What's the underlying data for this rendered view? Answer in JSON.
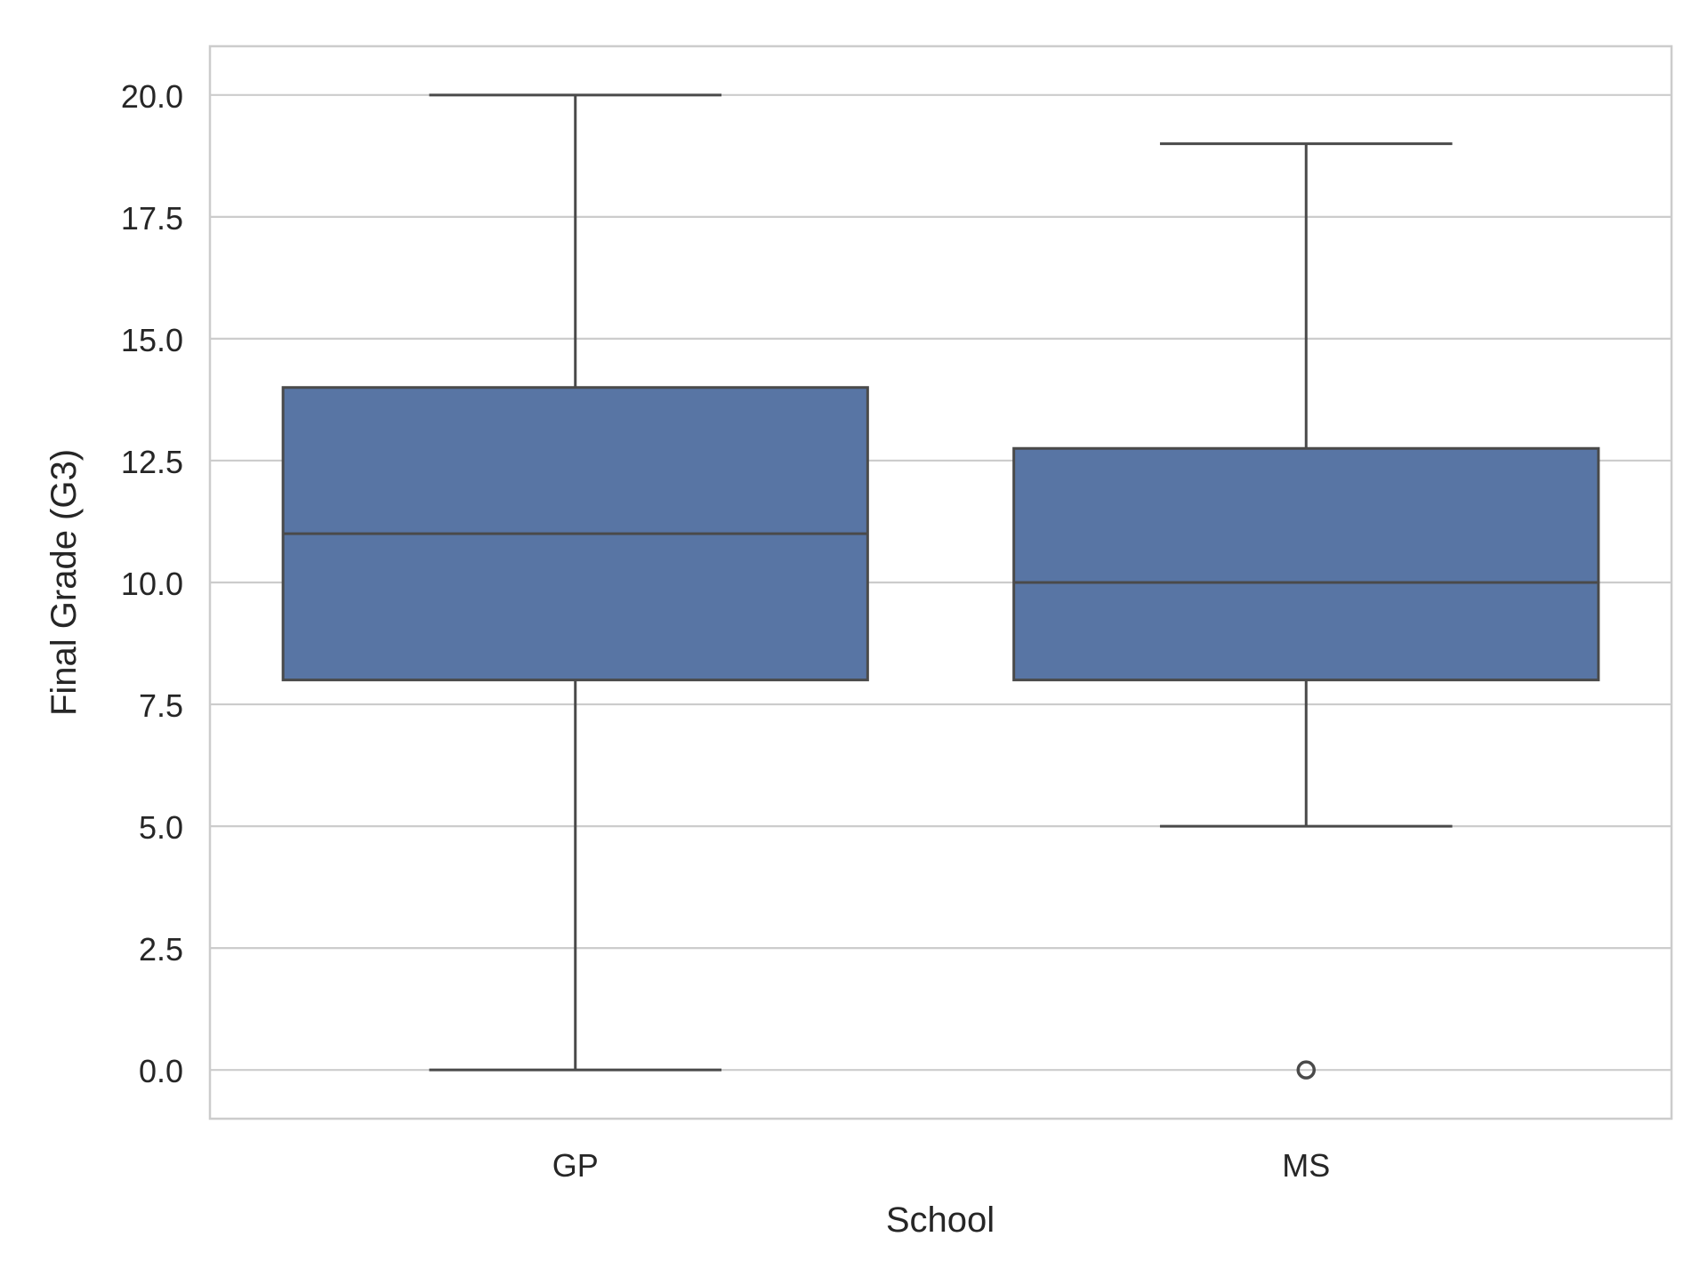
{
  "chart_data": {
    "type": "box",
    "title": "",
    "xlabel": "School",
    "ylabel": "Final Grade (G3)",
    "categories": [
      "GP",
      "MS"
    ],
    "ylim": [
      -1.0,
      21.0
    ],
    "yticks": [
      0.0,
      2.5,
      5.0,
      7.5,
      10.0,
      12.5,
      15.0,
      17.5,
      20.0
    ],
    "ytick_labels": [
      "0.0",
      "2.5",
      "5.0",
      "7.5",
      "10.0",
      "12.5",
      "15.0",
      "17.5",
      "20.0"
    ],
    "grid": "horizontal",
    "box_color": "#5875a4",
    "line_color": "#4a4a4a",
    "boxes": [
      {
        "category": "GP",
        "whisker_low": 0.0,
        "q1": 8.0,
        "median": 11.0,
        "q3": 14.0,
        "whisker_high": 20.0,
        "outliers": []
      },
      {
        "category": "MS",
        "whisker_low": 5.0,
        "q1": 8.0,
        "median": 10.0,
        "q3": 12.75,
        "whisker_high": 19.0,
        "outliers": [
          0.0
        ]
      }
    ]
  }
}
